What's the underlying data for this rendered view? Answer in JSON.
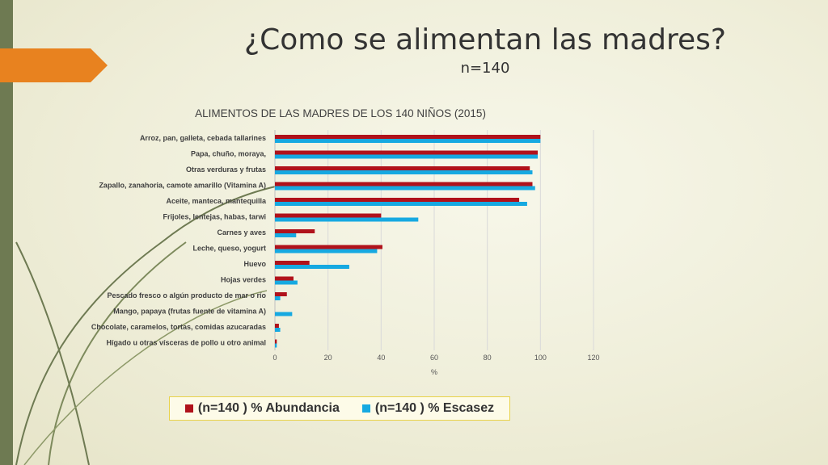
{
  "slide": {
    "title": "¿Como se alimentan las madres?",
    "subtitle": "n=140"
  },
  "colors": {
    "series_abundancia": "#b0121b",
    "series_escasez": "#16a9e1",
    "accent_tab": "#e8821f",
    "left_bar": "#6e7a52"
  },
  "chart_data": {
    "type": "bar",
    "orientation": "horizontal",
    "title": "ALIMENTOS DE LAS MADRES DE LOS 140 NIÑOS (2015)",
    "xlabel": "%",
    "ylabel": "",
    "xlim": [
      0,
      120
    ],
    "xticks": [
      0,
      20,
      40,
      60,
      80,
      100,
      120
    ],
    "grid": true,
    "legend_position": "bottom",
    "categories": [
      "Arroz, pan, galleta, cebada tallarines",
      "Papa, chuño, moraya,",
      "Otras verduras y frutas",
      "Zapallo, zanahoria, camote amarillo (Vitamina A)",
      "Aceite, manteca, mantequilla",
      "Frijoles, lentejas, habas, tarwi",
      "Carnes y aves",
      "Leche, queso, yogurt",
      "Huevo",
      "Hojas verdes",
      "Pescado fresco o algún producto de mar o río",
      "Mango, papaya (frutas fuente de vitamina A)",
      "Chocolate, caramelos, tortas, comidas azucaradas",
      "Hígado u otras vísceras de pollo u otro animal"
    ],
    "series": [
      {
        "name": "(n=140 ) % Abundancia",
        "values": [
          100,
          99,
          96,
          97,
          92,
          40,
          15,
          40.5,
          13,
          7,
          4.5,
          0,
          1.5,
          0.7
        ]
      },
      {
        "name": "(n=140 ) % Escasez",
        "values": [
          100,
          99,
          97,
          98,
          95,
          54,
          8,
          38.5,
          28,
          8.5,
          2,
          6.5,
          2,
          0.7
        ]
      }
    ]
  }
}
